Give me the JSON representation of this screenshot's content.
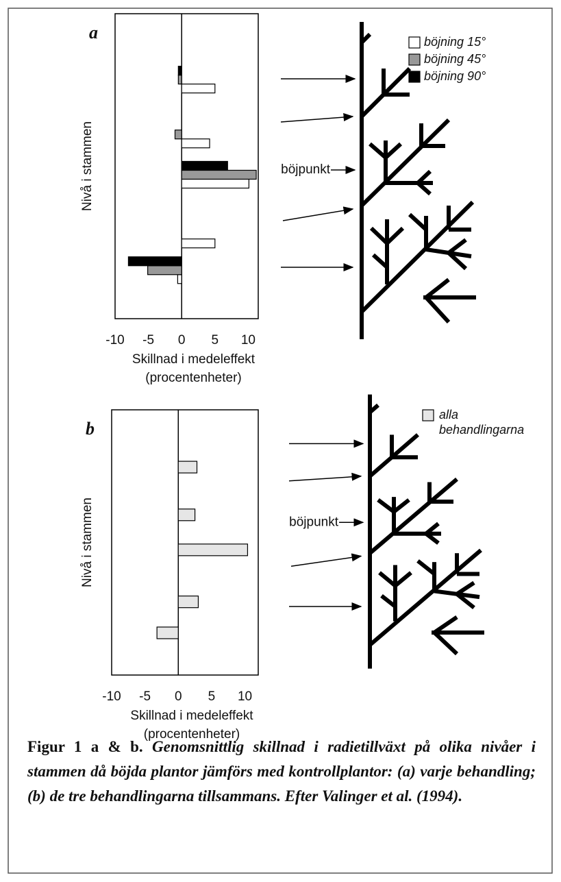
{
  "chart_data": [
    {
      "type": "hbar",
      "panel": "a",
      "ylabel": "Nivå i stammen",
      "xlabel": [
        "Skillnad i medeleffekt",
        "(procentenheter)"
      ],
      "annotation": "böjpunkt",
      "categories": [
        null,
        null,
        null,
        null,
        null
      ],
      "series": [
        {
          "name": "böjning 15°",
          "color": "#ffffff",
          "values": [
            5,
            4.2,
            10.1,
            5,
            -0.6
          ]
        },
        {
          "name": "böjning 45°",
          "color": "#999999",
          "values": [
            -0.5,
            -1,
            11.2,
            null,
            -5.1
          ]
        },
        {
          "name": "böjning 90°",
          "color": "#000000",
          "values": [
            -0.5,
            null,
            6.9,
            null,
            -8
          ]
        }
      ],
      "xlim": [
        -10,
        11.5
      ],
      "xticks": [
        -10,
        -5,
        0,
        5,
        10
      ]
    },
    {
      "type": "hbar",
      "panel": "b",
      "ylabel": "Nivå i stammen",
      "xlabel": [
        "Skillnad i medeleffekt",
        "(procentenheter)"
      ],
      "annotation": "böjpunkt",
      "categories": [
        null,
        null,
        null,
        null,
        null
      ],
      "series": [
        {
          "name": "alla behandlingarna",
          "color": "#e6e6e6",
          "values": [
            2.8,
            2.5,
            10.4,
            3,
            -3.2
          ]
        }
      ],
      "xlim": [
        -10,
        12
      ],
      "xticks": [
        -10,
        -5,
        0,
        5,
        10
      ]
    }
  ],
  "caption": {
    "label": "Figur 1 a & b.",
    "text": "Genomsnittlig skillnad i radietillväxt på olika nivåer i stammen då böjda plantor jämförs med kontrollplantor: (a) varje behandling; (b) de tre behandlingarna tillsammans. Efter Valinger et al. (1994)."
  }
}
